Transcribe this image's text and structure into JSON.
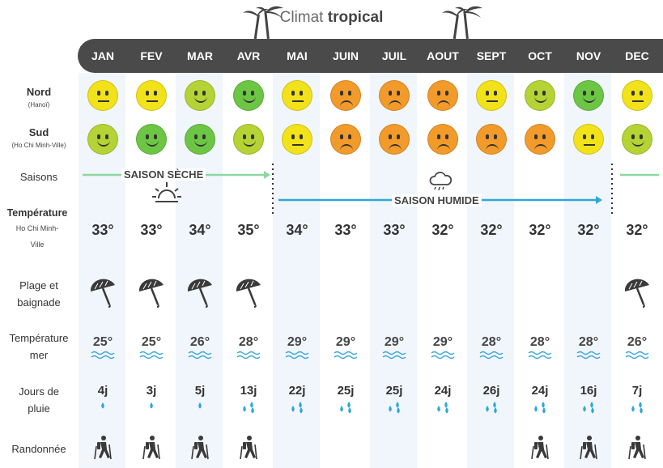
{
  "title": {
    "prefix": "Climat ",
    "bold": "tropical"
  },
  "months": [
    "JAN",
    "FEV",
    "MAR",
    "AVR",
    "MAI",
    "JUIN",
    "JUIL",
    "AOUT",
    "SEPT",
    "OCT",
    "NOV",
    "DEC"
  ],
  "rows": {
    "nord": {
      "label": "Nord",
      "sub": "(Hanoï)"
    },
    "sud": {
      "label": "Sud",
      "sub": "(Ho Chi Minh-Ville)"
    },
    "saisons": {
      "label": "Saisons"
    },
    "temperature": {
      "label": "Température",
      "sub": "Ho Chi Minh-Ville"
    },
    "plage": {
      "label_l1": "Plage et",
      "label_l2": "baignade"
    },
    "mer": {
      "label_l1": "Température",
      "label_l2": "mer"
    },
    "pluie": {
      "label_l1": "Jours de",
      "label_l2": "pluie"
    },
    "rando": {
      "label": "Randonnée"
    }
  },
  "nord_moods": [
    "neutral",
    "neutral",
    "happy",
    "happy",
    "neutral",
    "sad",
    "sad",
    "sad",
    "neutral",
    "happy",
    "happy",
    "neutral"
  ],
  "nord_colors": [
    "#f2e21a",
    "#f2e21a",
    "#b5d334",
    "#6cc644",
    "#f2e21a",
    "#f29b2a",
    "#f29b2a",
    "#f29b2a",
    "#f2e21a",
    "#b5d334",
    "#6cc644",
    "#f2e21a"
  ],
  "sud_moods": [
    "happy",
    "happy",
    "happy",
    "happy",
    "neutral",
    "sad",
    "sad",
    "sad",
    "sad",
    "sad",
    "neutral",
    "happy"
  ],
  "sud_colors": [
    "#b5d334",
    "#6cc644",
    "#6cc644",
    "#b5d334",
    "#f2e21a",
    "#f29b2a",
    "#f29b2a",
    "#f29b2a",
    "#f29b2a",
    "#f29b2a",
    "#f2e21a",
    "#b5d334"
  ],
  "seasons": {
    "dry": "SAISON SÈCHE",
    "wet": "SAISON HUMIDE",
    "dry_color": "#8ed8a0",
    "wet_color": "#2ba8d8"
  },
  "temperatures": [
    "33°",
    "33°",
    "34°",
    "35°",
    "34°",
    "33°",
    "33°",
    "32°",
    "32°",
    "32°",
    "32°",
    "32°"
  ],
  "beach": [
    true,
    true,
    true,
    true,
    false,
    false,
    false,
    false,
    false,
    false,
    false,
    true
  ],
  "sea_temps": [
    "25°",
    "25°",
    "26°",
    "28°",
    "29°",
    "29°",
    "29°",
    "29°",
    "28°",
    "28°",
    "28°",
    "26°"
  ],
  "rain_days": [
    "4j",
    "3j",
    "5j",
    "13j",
    "22j",
    "25j",
    "25j",
    "24j",
    "26j",
    "24j",
    "16j",
    "7j"
  ],
  "rain_drops": [
    1,
    1,
    1,
    2,
    2,
    2,
    2,
    2,
    2,
    2,
    2,
    2
  ],
  "hiking": [
    true,
    true,
    true,
    true,
    false,
    false,
    false,
    false,
    false,
    true,
    true,
    true
  ],
  "colors": {
    "month_bar": "#4a4a4a",
    "column_bg": "#f1f5fc",
    "water": "#3aa8d6"
  },
  "icons": [
    "palm-tree-icon",
    "sun-icon",
    "rain-cloud-icon",
    "beach-umbrella-icon",
    "water-drop-icon",
    "hiker-icon",
    "wave-icon"
  ]
}
